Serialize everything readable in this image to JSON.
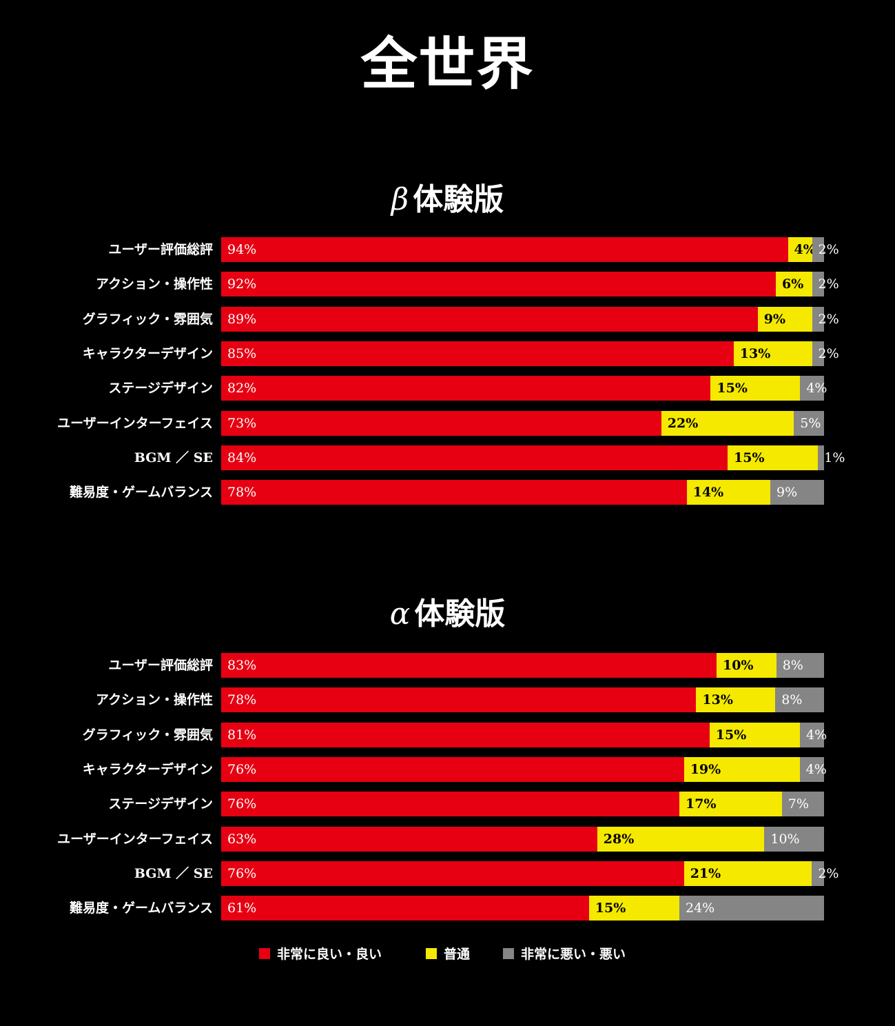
{
  "title": "全世界",
  "colors": {
    "good": "#e60012",
    "neutral": "#f5e900",
    "bad": "#858585",
    "background": "#000000"
  },
  "legend": [
    {
      "label": "非常に良い・良い",
      "color": "#e60012"
    },
    {
      "label": "普通",
      "color": "#f5e900"
    },
    {
      "label": "非常に悪い・悪い",
      "color": "#858585"
    }
  ],
  "chart_data": [
    {
      "type": "bar",
      "orientation": "horizontal-stacked",
      "title_greek": "β",
      "title": "体験版",
      "categories": [
        "ユーザー評価総評",
        "アクション・操作性",
        "グラフィック・雰囲気",
        "キャラクターデザイン",
        "ステージデザイン",
        "ユーザーインターフェイス",
        "BGM ／ SE",
        "難易度・ゲームバランス"
      ],
      "series": [
        {
          "name": "非常に良い・良い",
          "values": [
            94,
            92,
            89,
            85,
            82,
            73,
            84,
            78
          ]
        },
        {
          "name": "普通",
          "values": [
            4,
            6,
            9,
            13,
            15,
            22,
            15,
            14
          ]
        },
        {
          "name": "非常に悪い・悪い",
          "values": [
            2,
            2,
            2,
            2,
            4,
            5,
            1,
            9
          ]
        }
      ]
    },
    {
      "type": "bar",
      "orientation": "horizontal-stacked",
      "title_greek": "α",
      "title": "体験版",
      "categories": [
        "ユーザー評価総評",
        "アクション・操作性",
        "グラフィック・雰囲気",
        "キャラクターデザイン",
        "ステージデザイン",
        "ユーザーインターフェイス",
        "BGM ／ SE",
        "難易度・ゲームバランス"
      ],
      "series": [
        {
          "name": "非常に良い・良い",
          "values": [
            83,
            78,
            81,
            76,
            76,
            63,
            76,
            61
          ]
        },
        {
          "name": "普通",
          "values": [
            10,
            13,
            15,
            19,
            17,
            28,
            21,
            15
          ]
        },
        {
          "name": "非常に悪い・悪い",
          "values": [
            8,
            8,
            4,
            4,
            7,
            10,
            2,
            24
          ]
        }
      ]
    }
  ]
}
